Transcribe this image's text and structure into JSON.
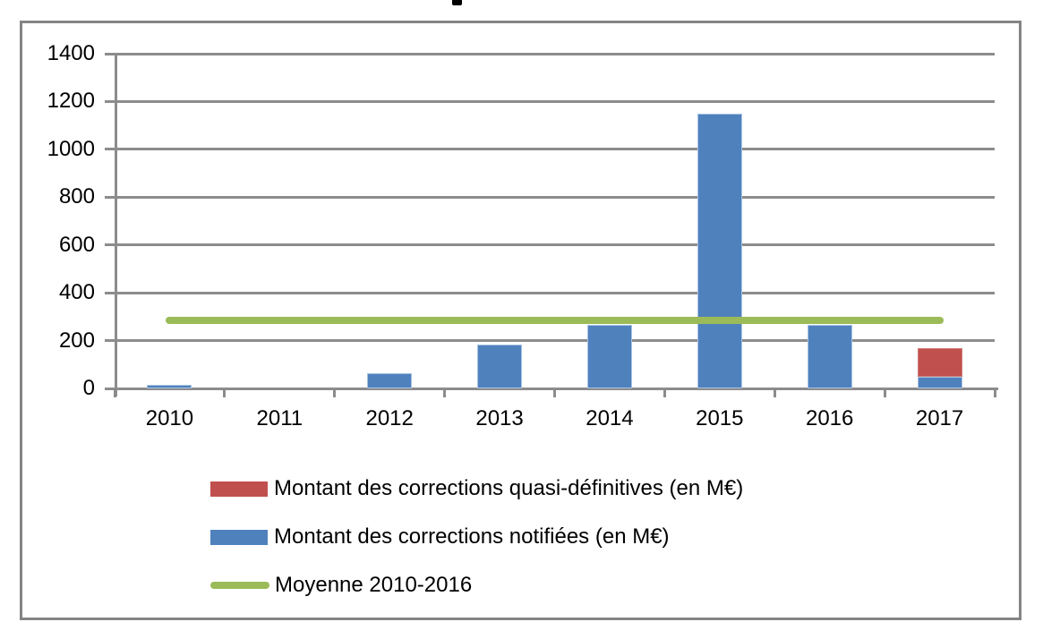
{
  "figure": {
    "background": "#ffffff",
    "border_color": "#848484",
    "cropped_title_fragment": true
  },
  "chart_data": {
    "type": "bar",
    "stacked": true,
    "grid": true,
    "legend_position": "bottom",
    "categories": [
      "2010",
      "2011",
      "2012",
      "2013",
      "2014",
      "2015",
      "2016",
      "2017"
    ],
    "series": [
      {
        "name": "Montant des corrections notifiées (en M€)",
        "type": "bar",
        "color": "#4F81BD",
        "values": [
          15,
          0,
          65,
          185,
          265,
          1150,
          265,
          50
        ]
      },
      {
        "name": "Montant des corrections quasi-définitives (en M€)",
        "type": "bar",
        "color": "#C0504D",
        "values": [
          0,
          0,
          0,
          0,
          0,
          0,
          0,
          120
        ]
      },
      {
        "name": "Moyenne 2010-2016",
        "type": "line",
        "color": "#9BBB59",
        "value": 283
      }
    ],
    "ylim": [
      0,
      1400
    ],
    "ytick_step": 200,
    "ytick_labels": [
      "0",
      "200",
      "400",
      "600",
      "800",
      "1000",
      "1200",
      "1400"
    ],
    "xlabel": "",
    "ylabel": "",
    "axis_color": "#8C8C8C",
    "gridline_color": "#8C8C8C",
    "text_color": "#000000",
    "legend": [
      {
        "label": "Montant des corrections quasi-définitives (en M€)",
        "swatch": "rect",
        "color": "#C0504D"
      },
      {
        "label": "Montant des corrections notifiées (en M€)",
        "swatch": "rect",
        "color": "#4F81BD"
      },
      {
        "label": "Moyenne 2010-2016",
        "swatch": "line",
        "color": "#9BBB59"
      }
    ]
  }
}
